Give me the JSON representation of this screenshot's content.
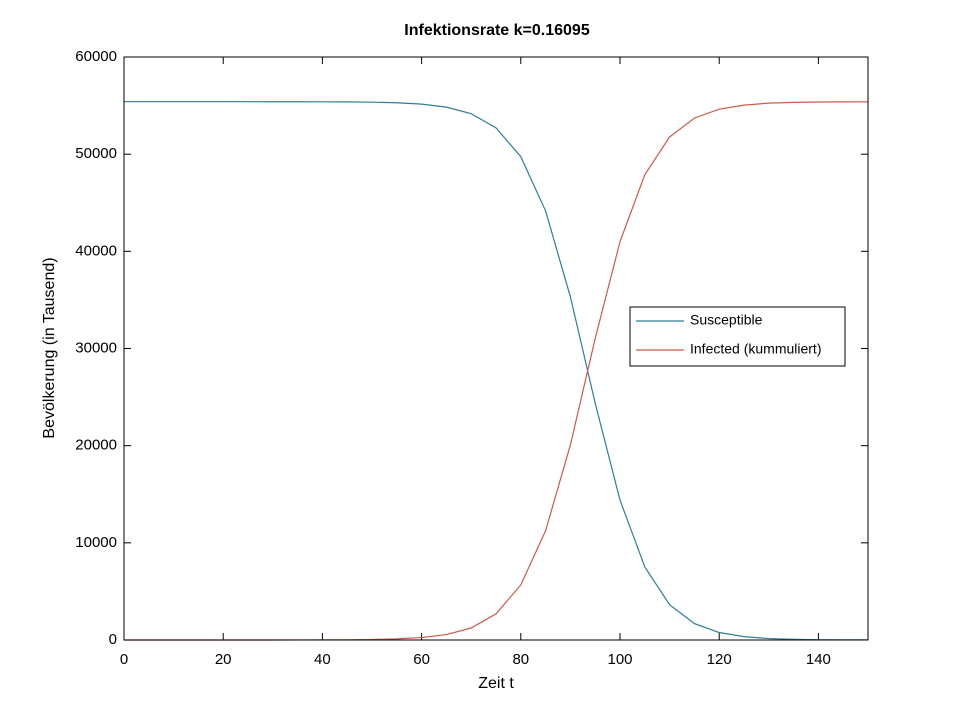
{
  "chart_data": {
    "type": "line",
    "title": "Infektionsrate k=0.16095",
    "x_label": "Zeit t",
    "y_label": "Bevölkerung (in Tausend)",
    "x": [
      0,
      5,
      10,
      15,
      20,
      25,
      30,
      35,
      40,
      45,
      50,
      55,
      60,
      65,
      70,
      75,
      80,
      85,
      90,
      95,
      100,
      105,
      110,
      115,
      120,
      125,
      130,
      135,
      140,
      145,
      150
    ],
    "series": [
      {
        "name": "Susceptible",
        "color": "#2f7c9c",
        "values": [
          55400,
          55400,
          55400,
          55400,
          55400,
          55399,
          55398,
          55396,
          55390,
          55378,
          55350,
          55288,
          55148,
          54842,
          54166,
          52710,
          49735,
          44160,
          35310,
          24370,
          14400,
          7520,
          3630,
          1690,
          770,
          350,
          150,
          70,
          30,
          15,
          10
        ]
      },
      {
        "name": "Infected (kummuliert)",
        "color": "#cc5a45",
        "values": [
          0,
          0,
          0,
          0,
          0,
          1,
          2,
          4,
          10,
          22,
          50,
          112,
          252,
          558,
          1234,
          2690,
          5665,
          11240,
          20090,
          31030,
          41000,
          47880,
          51770,
          53710,
          54630,
          55050,
          55250,
          55330,
          55370,
          55385,
          55390
        ]
      }
    ],
    "xlim": [
      0,
      150
    ],
    "xticks": [
      0,
      20,
      40,
      60,
      80,
      100,
      120,
      140
    ],
    "ylim": [
      0,
      60000
    ],
    "yticks": [
      0,
      10000,
      20000,
      30000,
      40000,
      50000,
      60000
    ],
    "legend_position": "east"
  }
}
